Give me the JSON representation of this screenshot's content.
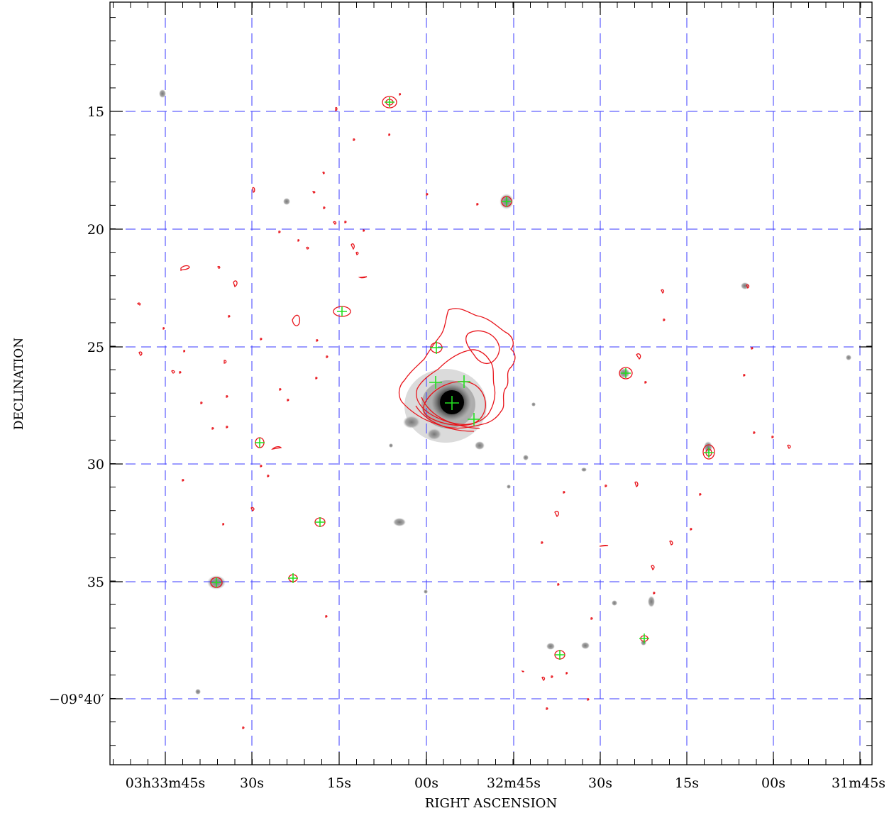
{
  "figure": {
    "xlabel": "RIGHT ASCENSION",
    "ylabel": "DECLINATION",
    "dec_ticks": [
      {
        "text": "15"
      },
      {
        "text": "20"
      },
      {
        "text": "25"
      },
      {
        "text": "30"
      },
      {
        "text": "35"
      },
      {
        "text": "−09°40′"
      }
    ],
    "ra_ticks": [
      {
        "text": "03h33m45s"
      },
      {
        "text": "30s"
      },
      {
        "text": "15s"
      },
      {
        "text": "00s"
      },
      {
        "text": "32m45s"
      },
      {
        "text": "30s"
      },
      {
        "text": "15s"
      },
      {
        "text": "00s"
      },
      {
        "text": "31m45s"
      }
    ],
    "colors": {
      "grid": "#3a3aff",
      "contour": "#e8141b",
      "source_marker": "#22e020",
      "greyscale_max": "#000000",
      "background": "#ffffff"
    }
  }
}
